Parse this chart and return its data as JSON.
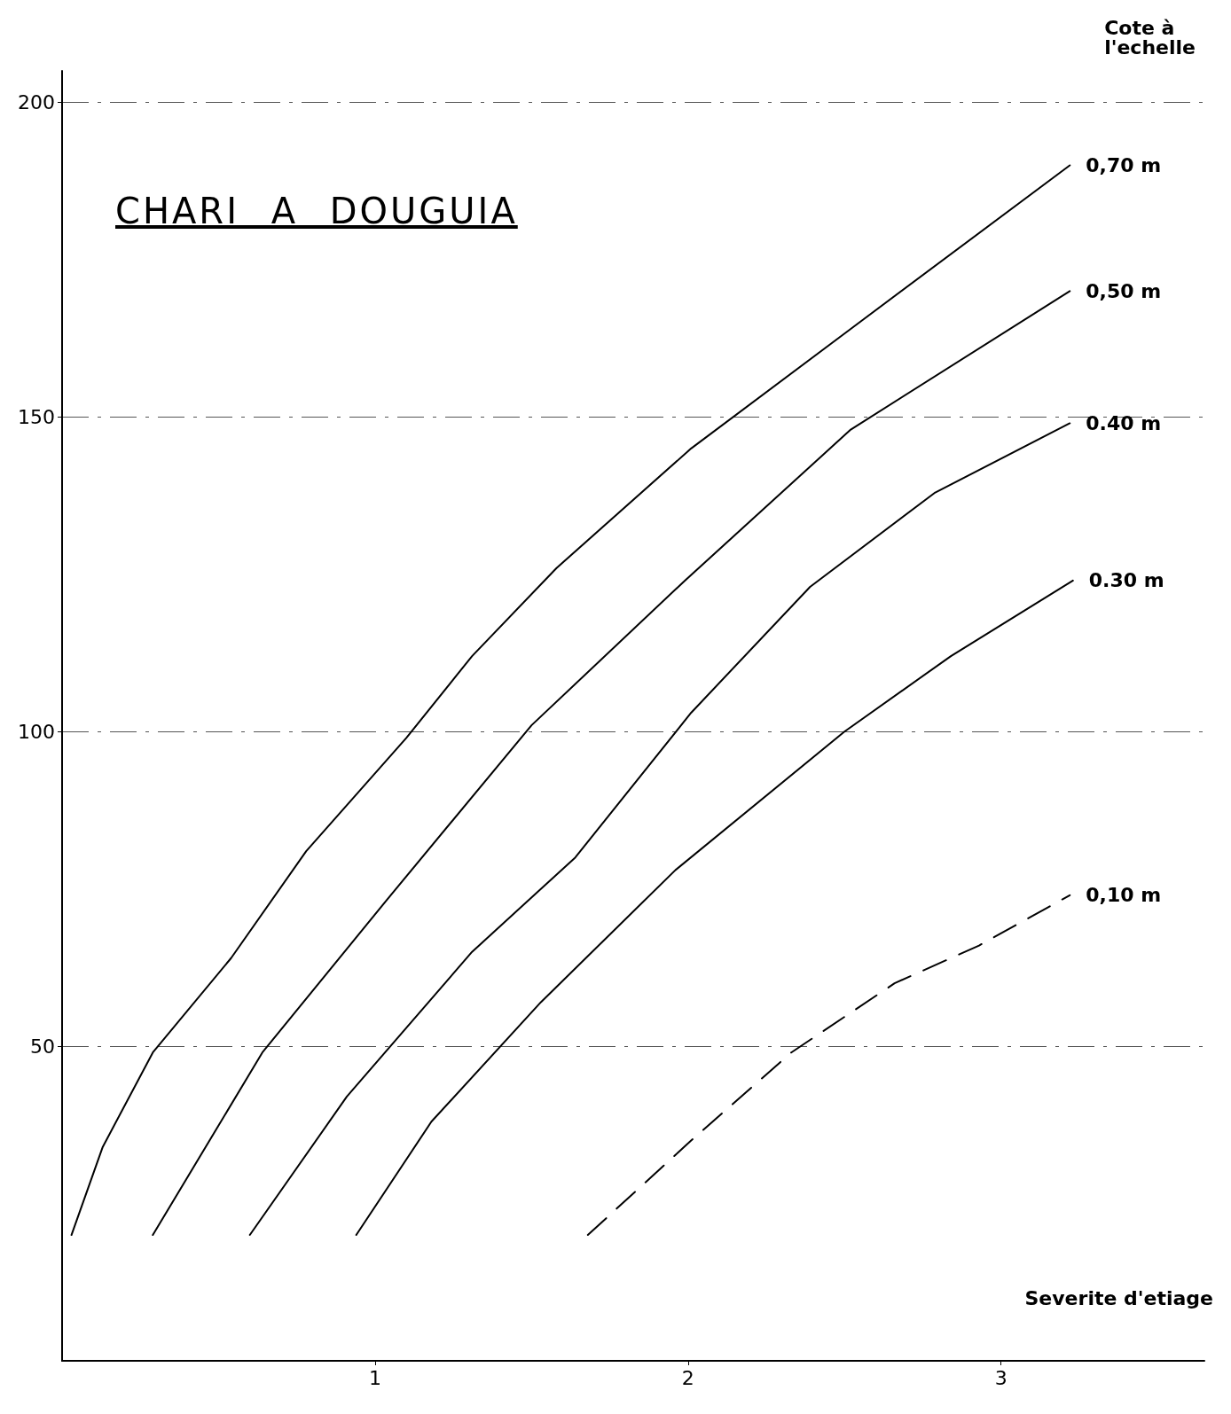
{
  "chart_data": {
    "type": "line",
    "title": "CHARI A DOUGUIA",
    "xlabel": "Severite d'etiage",
    "legend_title": "Cote à l'echelle",
    "xlim": [
      0,
      3.65
    ],
    "xticks": [
      1,
      2,
      3
    ],
    "ylim": [
      0,
      205
    ],
    "yticks": [
      50,
      100,
      150,
      200
    ],
    "grid": "y",
    "legend": false,
    "marker": "none",
    "series": [
      {
        "name": "0,70 m",
        "color": "#000000",
        "line_style": "solid",
        "x": [
          0.03,
          0.13,
          0.29,
          0.54,
          0.78,
          1.1,
          1.31,
          1.58,
          2.01,
          2.52,
          3.22
        ],
        "values": [
          20,
          34,
          49,
          64,
          81,
          99,
          112,
          126,
          145,
          164,
          190
        ]
      },
      {
        "name": "0,50 m",
        "color": "#000000",
        "line_style": "solid",
        "x": [
          0.29,
          0.64,
          1.05,
          1.5,
          1.99,
          2.52,
          3.22
        ],
        "values": [
          20,
          49,
          74,
          101,
          124,
          148,
          170
        ]
      },
      {
        "name": "0.40 m",
        "color": "#000000",
        "line_style": "solid",
        "x": [
          0.6,
          0.91,
          1.31,
          1.64,
          2.01,
          2.39,
          2.79,
          3.22
        ],
        "values": [
          20,
          42,
          65,
          80,
          103,
          123,
          138,
          149
        ]
      },
      {
        "name": "0.30 m",
        "color": "#000000",
        "line_style": "solid",
        "x": [
          0.94,
          1.18,
          1.53,
          1.96,
          2.5,
          2.84,
          3.23
        ],
        "values": [
          20,
          38,
          57,
          78,
          100,
          112,
          124
        ]
      },
      {
        "name": "0,10 m",
        "color": "#000000",
        "line_style": "dashed",
        "x": [
          1.68,
          2.01,
          2.33,
          2.66,
          2.93,
          3.22
        ],
        "values": [
          20,
          35,
          49,
          60,
          66,
          74
        ]
      }
    ]
  }
}
